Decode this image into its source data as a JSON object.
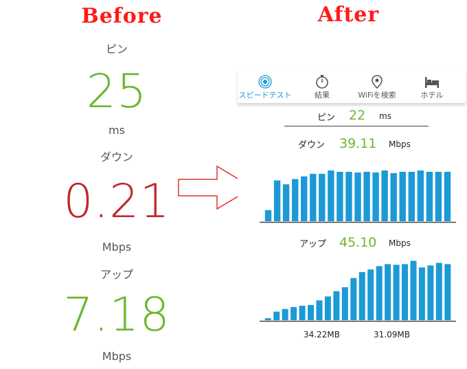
{
  "headings": {
    "before": "Before",
    "after": "After"
  },
  "before": {
    "ping_label": "ピン",
    "ping_value": "25",
    "ping_unit": "ms",
    "down_label": "ダウン",
    "down_value": "0.21",
    "down_unit": "Mbps",
    "up_label": "アップ",
    "up_value": "7.18",
    "up_unit": "Mbps",
    "colors": {
      "good": "#6ab82f",
      "bad": "#c0272d"
    }
  },
  "after": {
    "tabs": [
      {
        "label": "スピードテスト",
        "icon": "speed-test-icon",
        "active": true
      },
      {
        "label": "結果",
        "icon": "stopwatch-icon",
        "active": false
      },
      {
        "label": "WiFiを検索",
        "icon": "location-pin-icon",
        "active": false
      },
      {
        "label": "ホテル",
        "icon": "bed-icon",
        "active": false
      }
    ],
    "ping_label": "ピン",
    "ping_value": "22",
    "ping_unit": "ms",
    "down_label": "ダウン",
    "down_value": "39.11",
    "down_unit": "Mbps",
    "up_label": "アップ",
    "up_value": "45.10",
    "up_unit": "Mbps",
    "data_used_down": "34.22MB",
    "data_used_up": "31.09MB",
    "accent_color": "#1a9ad6",
    "bar_color": "#1c9ad6"
  },
  "chart_data": [
    {
      "type": "bar",
      "title": "",
      "series": [
        {
          "values": [
            0.17,
            0.62,
            0.56,
            0.64,
            0.68,
            0.72,
            0.72,
            0.77,
            0.75,
            0.75,
            0.74,
            0.75,
            0.74,
            0.77,
            0.73,
            0.75,
            0.75,
            0.77,
            0.75,
            0.75,
            0.75
          ]
        }
      ],
      "ylim": [
        0,
        1
      ],
      "xlabel": "",
      "ylabel": ""
    },
    {
      "type": "bar",
      "title": "",
      "series": [
        {
          "values": [
            0.03,
            0.13,
            0.17,
            0.2,
            0.22,
            0.23,
            0.3,
            0.36,
            0.44,
            0.5,
            0.64,
            0.73,
            0.77,
            0.82,
            0.85,
            0.84,
            0.85,
            0.9,
            0.8,
            0.83,
            0.87,
            0.85
          ]
        }
      ],
      "ylim": [
        0,
        1
      ],
      "xlabel": "",
      "ylabel": ""
    }
  ]
}
